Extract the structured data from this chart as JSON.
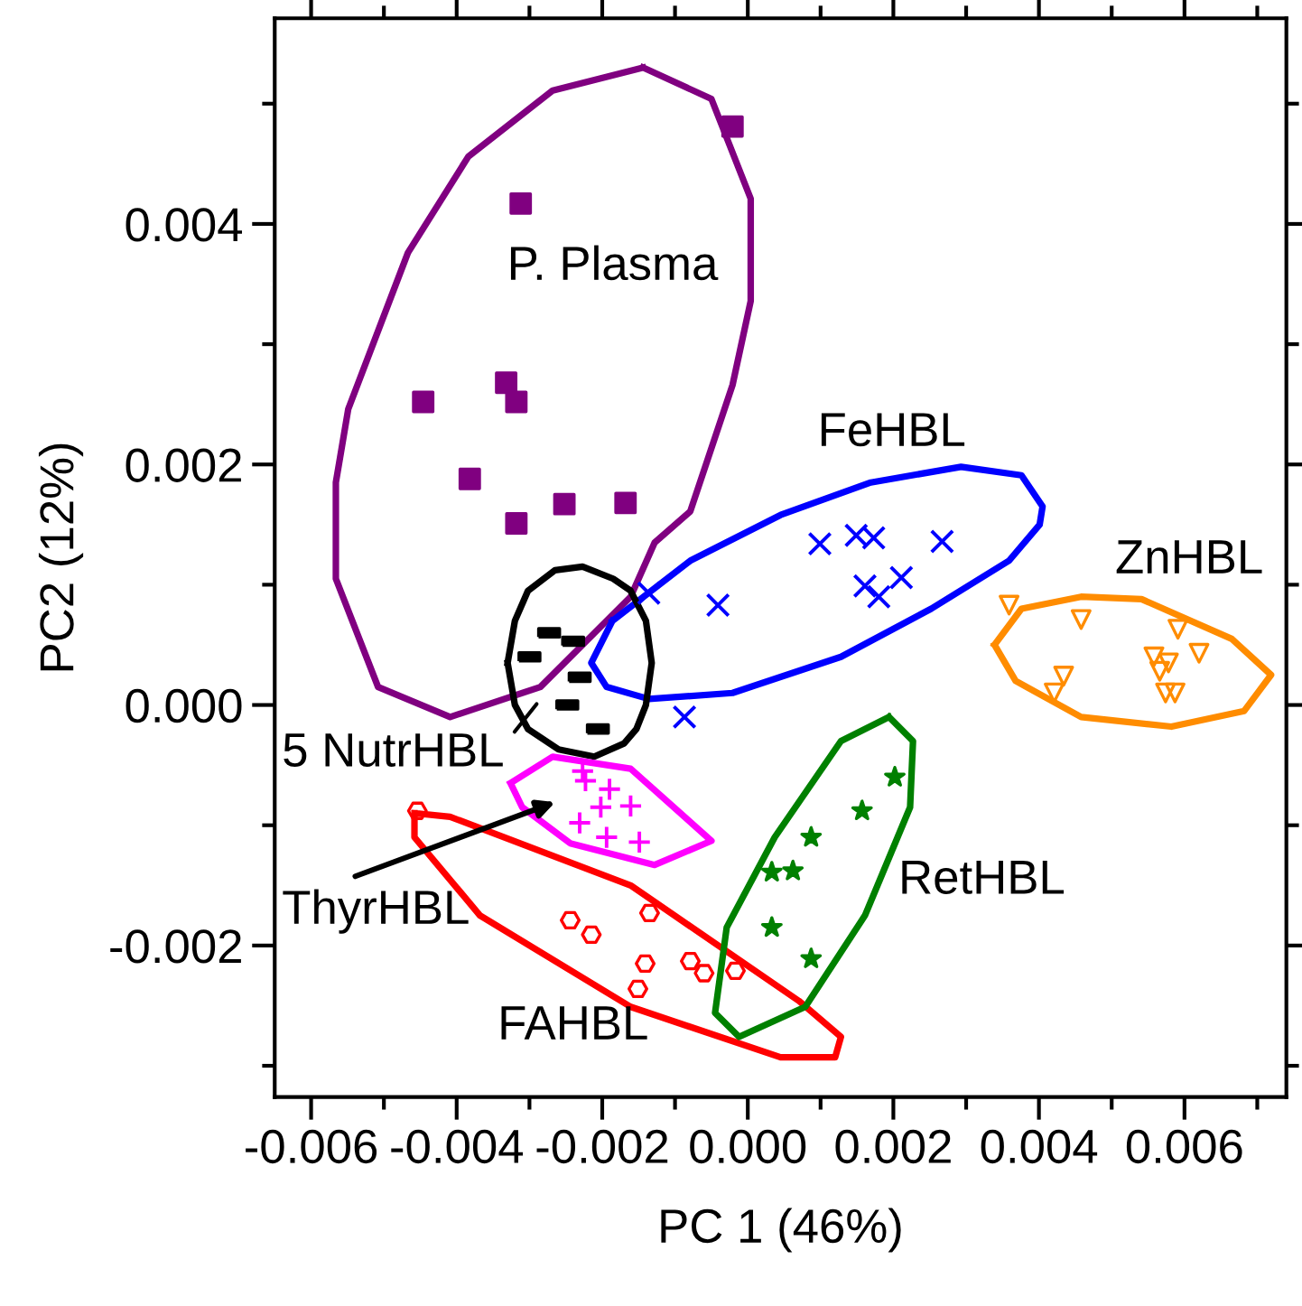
{
  "chart_data": {
    "type": "scatter",
    "xlabel": "PC 1 (46%)",
    "ylabel": "PC2 (12%)",
    "xlim": [
      -0.0065,
      0.0074
    ],
    "ylim": [
      -0.00326,
      0.00571
    ],
    "xticks": [
      {
        "value": -0.006,
        "label": "-0.006"
      },
      {
        "value": -0.005,
        "label": null
      },
      {
        "value": -0.004,
        "label": "-0.004"
      },
      {
        "value": -0.003,
        "label": null
      },
      {
        "value": -0.002,
        "label": "-0.002"
      },
      {
        "value": -0.001,
        "label": null
      },
      {
        "value": 0.0,
        "label": "0.000"
      },
      {
        "value": 0.001,
        "label": null
      },
      {
        "value": 0.002,
        "label": "0.002"
      },
      {
        "value": 0.003,
        "label": null
      },
      {
        "value": 0.004,
        "label": "0.004"
      },
      {
        "value": 0.005,
        "label": null
      },
      {
        "value": 0.006,
        "label": "0.006"
      },
      {
        "value": 0.007,
        "label": null
      }
    ],
    "yticks": [
      {
        "value": -0.003,
        "label": null
      },
      {
        "value": -0.002,
        "label": "-0.002"
      },
      {
        "value": -0.001,
        "label": null
      },
      {
        "value": 0.0,
        "label": "0.000"
      },
      {
        "value": 0.001,
        "label": null
      },
      {
        "value": 0.002,
        "label": "0.002"
      },
      {
        "value": 0.003,
        "label": null
      },
      {
        "value": 0.004,
        "label": "0.004"
      },
      {
        "value": 0.005,
        "label": null
      }
    ],
    "grid": false,
    "series": [
      {
        "marker": "square",
        "color": "#800080",
        "x": [
          -0.00021,
          -0.00312,
          -0.00446,
          -0.00332,
          -0.00318,
          -0.00382,
          -0.00318,
          -0.00252,
          -0.00168
        ],
        "values": [
          0.00481,
          0.00417,
          0.00252,
          0.00268,
          0.00252,
          0.00188,
          0.00151,
          0.00167,
          0.00168
        ]
      },
      {
        "marker": "cross",
        "color": "#0000ff",
        "x": [
          0.00099,
          0.00149,
          0.00173,
          0.00267,
          0.00161,
          0.0018,
          0.00211,
          -0.00041,
          -0.00136,
          -0.00087
        ],
        "values": [
          0.00134,
          0.00141,
          0.00139,
          0.00136,
          0.00099,
          0.0009,
          0.00106,
          0.00083,
          0.00093,
          -0.0001
        ]
      },
      {
        "marker": "triangle",
        "color": "#ff8c00",
        "x": [
          0.00359,
          0.00458,
          0.00591,
          0.00558,
          0.00578,
          0.0062,
          0.00566,
          0.00434,
          0.00421,
          0.00574,
          0.00587
        ],
        "values": [
          0.00083,
          0.00071,
          0.00063,
          0.0004,
          0.00035,
          0.00043,
          0.00028,
          0.00024,
          0.0001,
          0.0001,
          0.0001
        ]
      },
      {
        "color": "#000000",
        "x": [
          -0.00273,
          -0.0024,
          -0.003,
          -0.00231,
          -0.00248,
          -0.00206
        ],
        "values": [
          0.0006,
          0.00053,
          0.0004,
          0.00023,
          0.0,
          -0.0002
        ]
      },
      {
        "marker": "cross",
        "color": "#ff00ff",
        "x": [
          -0.00223,
          -0.0019,
          -0.00161,
          -0.00202,
          -0.00231,
          -0.00194,
          -0.00149,
          -0.00227
        ],
        "values": [
          -0.00063,
          -0.0007,
          -0.00084,
          -0.00085,
          -0.00098,
          -0.0011,
          -0.00114,
          -0.00055
        ]
      },
      {
        "marker": "circle",
        "color": "#ff0000",
        "x": [
          -0.00454,
          -0.00244,
          -0.00215,
          -0.00135,
          -0.00141,
          -0.00151,
          -0.00079,
          -0.0006,
          -0.00017
        ],
        "values": [
          -0.00088,
          -0.00179,
          -0.00191,
          -0.00173,
          -0.00215,
          -0.00236,
          -0.00213,
          -0.00223,
          -0.00221
        ]
      },
      {
        "marker": "star",
        "color": "#008000",
        "x": [
          0.00202,
          0.00157,
          0.00087,
          0.00033,
          0.00062,
          0.00033,
          0.00087
        ],
        "values": [
          -0.0006,
          -0.00088,
          -0.0011,
          -0.00139,
          -0.00138,
          -0.00185,
          -0.00211
        ]
      }
    ],
    "annotations": [
      "P. Plasma",
      "FeHBL",
      "ZnHBL",
      "5 NutrHBL",
      "ThyrHBL",
      "FAHBL",
      "RetHBL"
    ]
  }
}
